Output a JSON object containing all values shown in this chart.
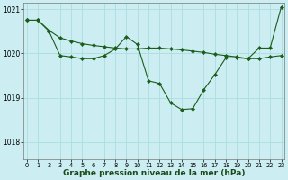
{
  "background_color": "#cceef2",
  "grid_color": "#aadddd",
  "line_color": "#1a5c1a",
  "marker_color": "#1a5c1a",
  "title": "Graphe pression niveau de la mer (hPa)",
  "title_fontsize": 6.5,
  "ylim": [
    1017.6,
    1021.15
  ],
  "xlim": [
    -0.3,
    23.3
  ],
  "yticks": [
    1018,
    1019,
    1020,
    1021
  ],
  "xticks": [
    0,
    1,
    2,
    3,
    4,
    5,
    6,
    7,
    8,
    9,
    10,
    11,
    12,
    13,
    14,
    15,
    16,
    17,
    18,
    19,
    20,
    21,
    22,
    23
  ],
  "line1_x": [
    0,
    1,
    2,
    3,
    4,
    5,
    6,
    7,
    8,
    9,
    10,
    11,
    12,
    13,
    14,
    15,
    16,
    17,
    18,
    19,
    20,
    21,
    22,
    23
  ],
  "line1_y": [
    1020.75,
    1020.75,
    1020.5,
    1019.95,
    1019.92,
    1019.88,
    1019.88,
    1019.95,
    1020.1,
    1020.38,
    1020.2,
    1019.38,
    1019.32,
    1018.88,
    1018.73,
    1018.75,
    1019.18,
    1019.52,
    1019.9,
    1019.9,
    1019.88,
    1020.12,
    1020.12,
    1021.05
  ],
  "line2_x": [
    0,
    1,
    2,
    3,
    4,
    5,
    6,
    7,
    8,
    9,
    10,
    11,
    12,
    13,
    14,
    15,
    16,
    17,
    18,
    19,
    20,
    21,
    22,
    23
  ],
  "line2_y": [
    1020.75,
    1020.75,
    1020.52,
    1020.35,
    1020.28,
    1020.22,
    1020.18,
    1020.15,
    1020.12,
    1020.1,
    1020.1,
    1020.12,
    1020.12,
    1020.1,
    1020.08,
    1020.05,
    1020.02,
    1019.98,
    1019.95,
    1019.92,
    1019.88,
    1019.88,
    1019.92,
    1019.95
  ]
}
